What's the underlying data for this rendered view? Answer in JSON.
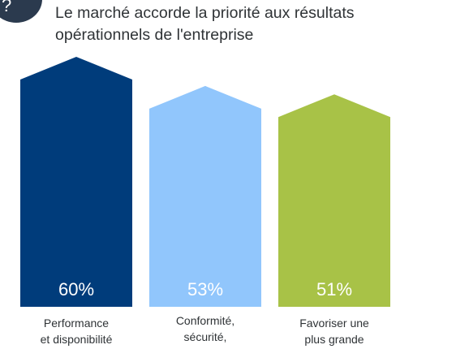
{
  "title": "Le marché accorde la priorité aux résultats opérationnels de l'entreprise",
  "badge_icon": "question-mark-icon",
  "chart_data": {
    "type": "bar",
    "title": "Le marché accorde la priorité aux résultats opérationnels de l'entreprise",
    "categories": [
      "Performance\net disponibilité",
      "Conformité,\nsécurité,",
      "Favoriser une\nplus grande"
    ],
    "values": [
      60,
      53,
      51
    ],
    "value_labels": [
      "60%",
      "53%",
      "51%"
    ],
    "colors": [
      "#003c7b",
      "#91c6fc",
      "#a8c247"
    ],
    "ylim": [
      0,
      60
    ],
    "grid": false,
    "legend": "none"
  }
}
